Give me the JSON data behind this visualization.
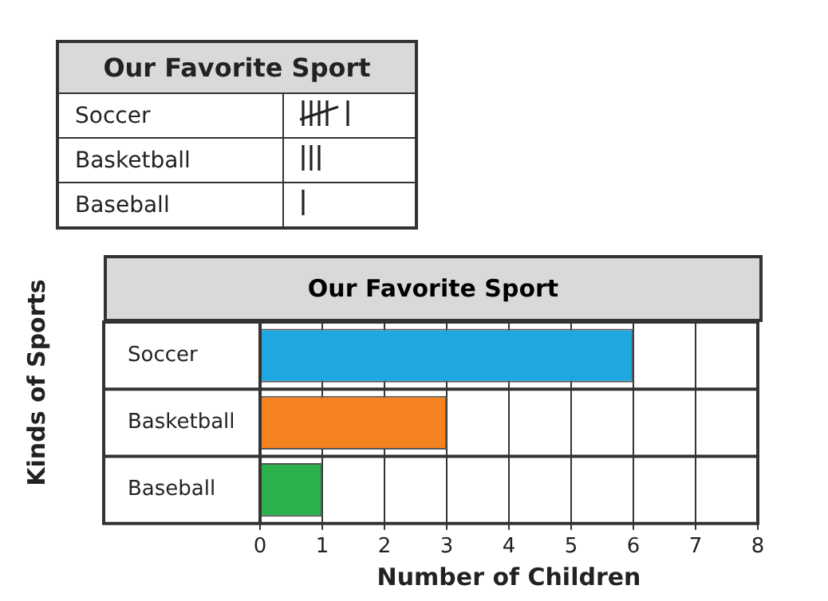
{
  "chart_data": [
    {
      "type": "other",
      "title": "Our Favorite Sport",
      "categories": [
        "Soccer",
        "Basketball",
        "Baseball"
      ]
    },
    {
      "type": "bar",
      "orientation": "horizontal",
      "title": "Our Favorite Sport",
      "categories": [
        "Soccer",
        "Basketball",
        "Baseball"
      ],
      "values": [
        6,
        3,
        1
      ],
      "colors": [
        "#1ea7e1",
        "#f58220",
        "#2bb24c"
      ],
      "xlim": [
        0,
        8
      ],
      "xticks": [
        0,
        1,
        2,
        3,
        4,
        5,
        6,
        7,
        8
      ],
      "xlabel": "Number of Children",
      "ylabel": "Kinds of Sports",
      "grid": true,
      "legend": false
    }
  ]
}
